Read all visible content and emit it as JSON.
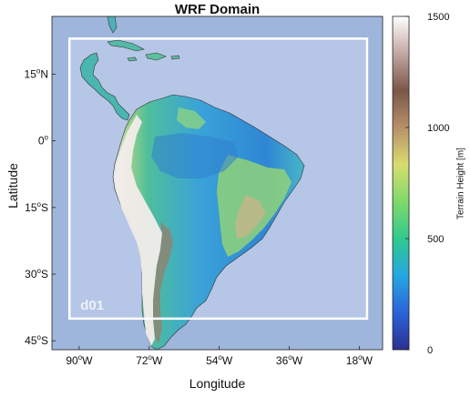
{
  "title": "WRF Domain",
  "xlabel": "Longitude",
  "ylabel": "Latitude",
  "colorbar": {
    "label": "Terrain Height [m]",
    "ticks": [
      {
        "value": 0,
        "label": "0"
      },
      {
        "value": 500,
        "label": "500"
      },
      {
        "value": 1000,
        "label": "1000"
      },
      {
        "value": 1500,
        "label": "1500"
      }
    ],
    "range": [
      0,
      1500
    ],
    "colormap": [
      "#2b2f8f",
      "#2a63d8",
      "#25a7e0",
      "#31c98f",
      "#7fd96a",
      "#d8dc6e",
      "#b7906a",
      "#7a5648",
      "#c2a8a3",
      "#ffffff"
    ]
  },
  "map": {
    "lon_range": [
      -97,
      -12
    ],
    "lat_range": [
      -47,
      28
    ],
    "x_ticks": [
      {
        "value": -90,
        "label": "90",
        "hemi": "W"
      },
      {
        "value": -72,
        "label": "72",
        "hemi": "W"
      },
      {
        "value": -54,
        "label": "54",
        "hemi": "W"
      },
      {
        "value": -36,
        "label": "36",
        "hemi": "W"
      },
      {
        "value": -18,
        "label": "18",
        "hemi": "W"
      }
    ],
    "y_ticks": [
      {
        "value": 15,
        "label": "15",
        "hemi": "N"
      },
      {
        "value": 0,
        "label": "0",
        "hemi": ""
      },
      {
        "value": -15,
        "label": "15",
        "hemi": "S"
      },
      {
        "value": -30,
        "label": "30",
        "hemi": "S"
      },
      {
        "value": -45,
        "label": "45",
        "hemi": "S"
      }
    ],
    "ocean_color": "#9eb5dc",
    "domain_fill": "#bccbe8"
  },
  "domain": {
    "name": "d01",
    "lon_range": [
      -92.5,
      -16
    ],
    "lat_range": [
      -40,
      23
    ]
  }
}
